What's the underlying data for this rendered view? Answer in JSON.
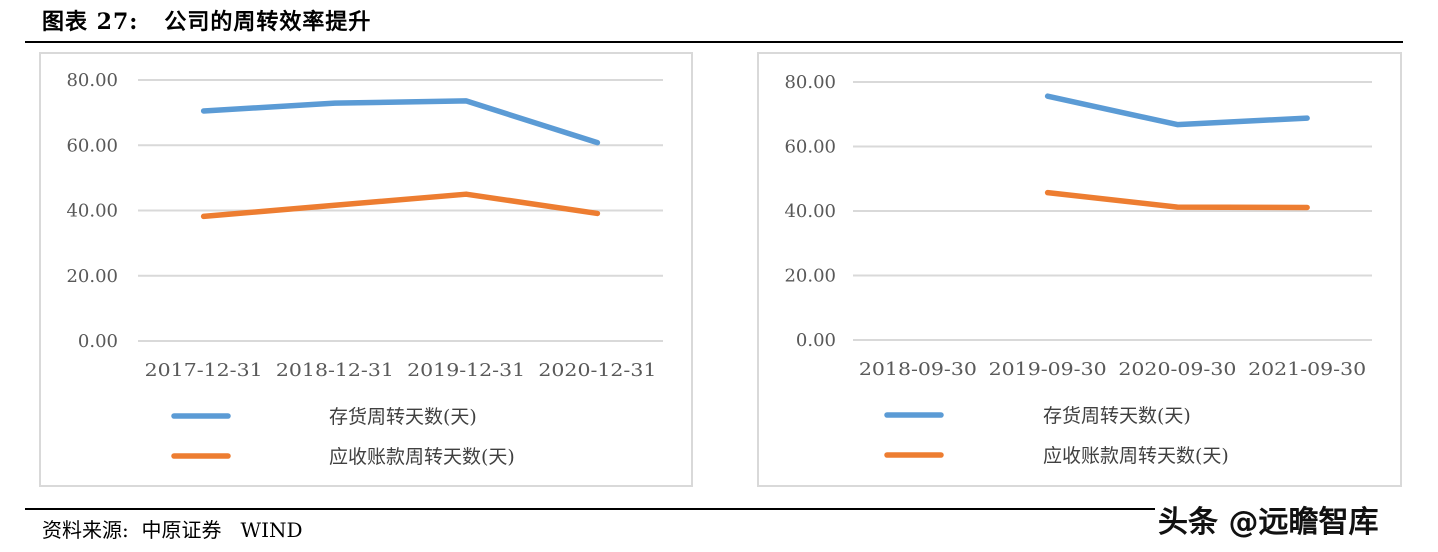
{
  "header": {
    "title": "图表 27:   公司的周转效率提升"
  },
  "source": {
    "text": "资料来源:  中原证券   WIND"
  },
  "watermark": {
    "text": "头条 @远瞻智库"
  },
  "colors": {
    "inventory": "#5B9BD5",
    "receivables": "#ED7D31",
    "grid": "#d9d9d9",
    "tick": "#595959"
  },
  "chart_data": [
    {
      "type": "line",
      "title": "",
      "xlabel": "",
      "ylabel": "",
      "categories": [
        "2017-12-31",
        "2018-12-31",
        "2019-12-31",
        "2020-12-31"
      ],
      "ylim": [
        0,
        80
      ],
      "yticks": [
        "0.00",
        "20.00",
        "40.00",
        "60.00",
        "80.00"
      ],
      "ytick_values": [
        0,
        20,
        40,
        60,
        80
      ],
      "grid": true,
      "legend_position": "bottom",
      "series": [
        {
          "name": "存货周转天数(天)",
          "values": [
            70.5,
            72.9,
            73.6,
            60.8
          ]
        },
        {
          "name": "应收账款周转天数(天)",
          "values": [
            38.2,
            41.6,
            45.0,
            39.1
          ]
        }
      ]
    },
    {
      "type": "line",
      "title": "",
      "xlabel": "",
      "ylabel": "",
      "categories": [
        "2018-09-30",
        "2019-09-30",
        "2020-09-30",
        "2021-09-30"
      ],
      "ylim": [
        0,
        80
      ],
      "yticks": [
        "0.00",
        "20.00",
        "40.00",
        "60.00",
        "80.00"
      ],
      "ytick_values": [
        0,
        20,
        40,
        60,
        80
      ],
      "grid": true,
      "legend_position": "bottom",
      "series": [
        {
          "name": "存货周转天数(天)",
          "values": [
            null,
            75.6,
            66.8,
            68.8
          ]
        },
        {
          "name": "应收账款周转天数(天)",
          "values": [
            null,
            45.7,
            41.2,
            41.1
          ]
        }
      ]
    }
  ]
}
